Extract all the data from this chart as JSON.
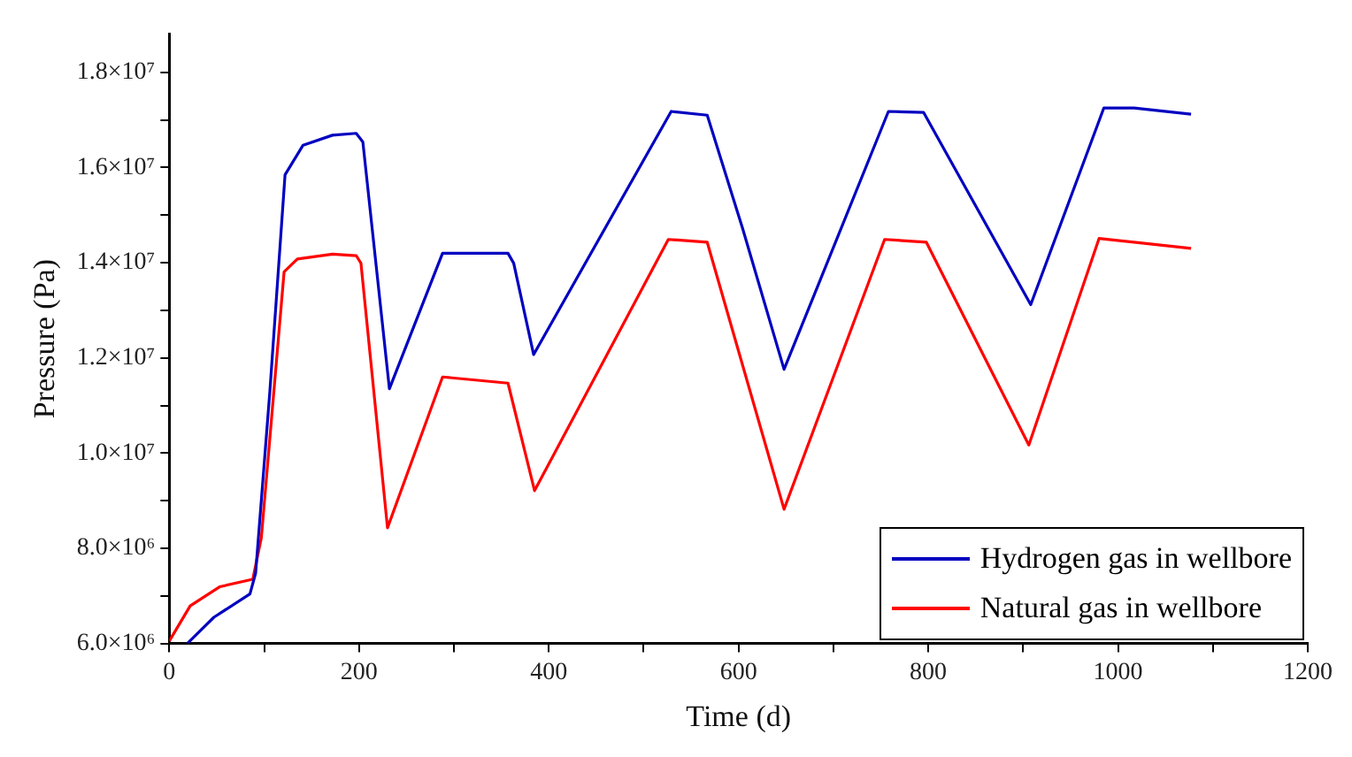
{
  "chart_data": {
    "type": "line",
    "xlabel": "Time (d)",
    "ylabel": "Pressure (Pa)",
    "xlim": [
      0,
      1200
    ],
    "xticks": [
      0,
      {
        "value": 100,
        "label": null
      },
      200,
      {
        "value": 300,
        "label": null
      },
      400,
      {
        "value": 500,
        "label": null
      },
      600,
      {
        "value": 700,
        "label": null
      },
      800,
      {
        "value": 900,
        "label": null
      },
      1000,
      {
        "value": 1100,
        "label": null
      },
      1200
    ],
    "ylim": [
      6000000,
      18800000
    ],
    "yticks": [
      {
        "value": 6000000,
        "label": "6.0×10⁶"
      },
      {
        "value": 7000000,
        "label": null
      },
      {
        "value": 8000000,
        "label": "8.0×10⁶"
      },
      {
        "value": 9000000,
        "label": null
      },
      {
        "value": 10000000,
        "label": "1.0×10⁷"
      },
      {
        "value": 11000000,
        "label": null
      },
      {
        "value": 12000000,
        "label": "1.2×10⁷"
      },
      {
        "value": 13000000,
        "label": null
      },
      {
        "value": 14000000,
        "label": "1.4×10⁷"
      },
      {
        "value": 15000000,
        "label": null
      },
      {
        "value": 16000000,
        "label": "1.6×10⁷"
      },
      {
        "value": 17000000,
        "label": null
      },
      {
        "value": 18000000,
        "label": "1.8×10⁷"
      }
    ],
    "grid": false,
    "legend": "bottom right",
    "marker": "none",
    "line_style": "solid",
    "series": [
      {
        "name": "Hydrogen gas in wellbore",
        "color": "#0000c0",
        "x": [
          19,
          47,
          85,
          91,
          106,
          122,
          141,
          172,
          197,
          204,
          232,
          288,
          357,
          363,
          384,
          529,
          567,
          604,
          648,
          758,
          795,
          908,
          985,
          1017,
          1077
        ],
        "values": [
          6000000,
          6550000,
          7040000,
          7480000,
          11300000,
          15850000,
          16470000,
          16680000,
          16720000,
          16540000,
          11350000,
          14200000,
          14200000,
          13990000,
          12070000,
          17180000,
          17100000,
          14740000,
          11760000,
          17180000,
          17160000,
          13120000,
          17250000,
          17250000,
          17120000
        ]
      },
      {
        "name": "Natural gas in wellbore",
        "color": "#ff0000",
        "x": [
          0,
          22,
          53,
          88,
          97,
          121,
          135,
          172,
          197,
          202,
          230,
          288,
          357,
          385,
          526,
          567,
          648,
          754,
          798,
          906,
          980,
          1077
        ],
        "values": [
          6050000,
          6790000,
          7190000,
          7350000,
          8220000,
          13810000,
          14080000,
          14180000,
          14150000,
          13990000,
          8430000,
          11600000,
          11470000,
          9210000,
          14490000,
          14430000,
          8820000,
          14490000,
          14430000,
          10170000,
          14510000,
          14300000
        ]
      }
    ]
  }
}
